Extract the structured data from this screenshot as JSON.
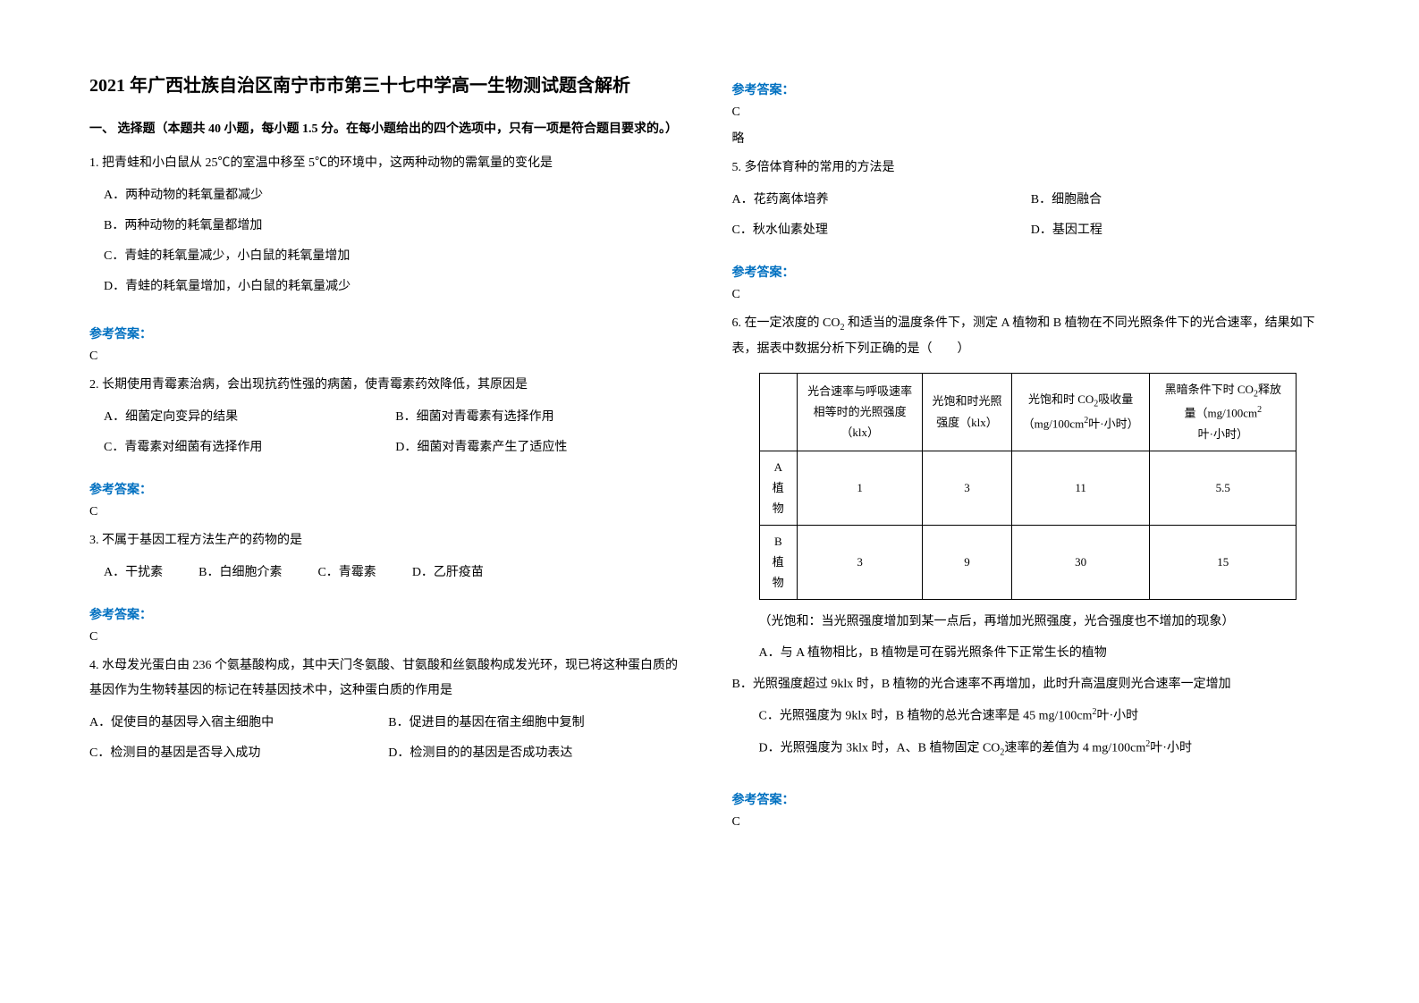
{
  "title": "2021 年广西壮族自治区南宁市市第三十七中学高一生物测试题含解析",
  "section_header": "一、 选择题（本题共 40 小题，每小题 1.5 分。在每小题给出的四个选项中，只有一项是符合题目要求的。）",
  "answer_label": "参考答案：",
  "answer_note": "略",
  "table_note": "（光饱和：当光照强度增加到某一点后，再增加光照强度，光合强度也不增加的现象）",
  "q1": {
    "text": "1. 把青蛙和小白鼠从 25℃的室温中移至 5℃的环境中，这两种动物的需氧量的变化是",
    "a": "A．两种动物的耗氧量都减少",
    "b": "B．两种动物的耗氧量都增加",
    "c": "C．青蛙的耗氧量减少，小白鼠的耗氧量增加",
    "d": "D．青蛙的耗氧量增加，小白鼠的耗氧量减少",
    "answer": "C"
  },
  "q2": {
    "text": "2. 长期使用青霉素治病，会出现抗药性强的病菌，使青霉素药效降低，其原因是",
    "a": "A．细菌定向变异的结果",
    "b": "B．细菌对青霉素有选择作用",
    "c": "C．青霉素对细菌有选择作用",
    "d": "D．细菌对青霉素产生了适应性",
    "answer": "C"
  },
  "q3": {
    "text": "3. 不属于基因工程方法生产的药物的是",
    "a": "A．干扰素",
    "b": "B．白细胞介素",
    "c": "C．青霉素",
    "d": "D．乙肝疫苗",
    "answer": "C"
  },
  "q4": {
    "text": "4. 水母发光蛋白由 236 个氨基酸构成，其中天门冬氨酸、甘氨酸和丝氨酸构成发光环，现已将这种蛋白质的基因作为生物转基因的标记在转基因技术中，这种蛋白质的作用是",
    "a": "A．促使目的基因导入宿主细胞中",
    "b": "B．促进目的基因在宿主细胞中复制",
    "c": "C．检测目的基因是否导入成功",
    "d": "D．检测目的的基因是否成功表达",
    "answer": "C"
  },
  "q5": {
    "text": "5. 多倍体育种的常用的方法是",
    "a": "A．花药离体培养",
    "b": "B．细胞融合",
    "c": "C．秋水仙素处理",
    "d": "D．基因工程",
    "answer": "C"
  },
  "q6": {
    "text_prefix": "6. 在一定浓度的 CO",
    "text_suffix": " 和适当的温度条件下，测定 A 植物和 B 植物在不同光照条件下的光合速率，结果如下表，据表中数据分析下列正确的是（　　）",
    "a": "A．与 A 植物相比，B 植物是可在弱光照条件下正常生长的植物",
    "b": "B．光照强度超过 9klx 时，B 植物的光合速率不再增加，此时升高温度则光合速率一定增加",
    "c_prefix": "C．光照强度为 9klx 时，B 植物的总光合速率是 45 mg/100cm",
    "c_suffix": "叶·小时",
    "d_prefix": "D．光照强度为 3klx 时，A、B 植物固定 CO",
    "d_mid": "速率的差值为 4 mg/100cm",
    "d_suffix": "叶·小时",
    "answer": "C"
  },
  "table": {
    "headers": {
      "h1": "光合速率与呼吸速率相等时的光照强度（klx）",
      "h2": "光饱和时光照强度（klx）",
      "h3_prefix": "光饱和时 CO",
      "h3_mid": "吸收量（mg/100cm",
      "h3_suffix": "叶·小时）",
      "h4_prefix": "黑暗条件下时 CO",
      "h4_mid": "释放量（mg/100cm",
      "h4_suffix": "叶·小时）"
    },
    "rows": [
      {
        "label": "A 植物",
        "v1": "1",
        "v2": "3",
        "v3": "11",
        "v4": "5.5"
      },
      {
        "label": "B 植物",
        "v1": "3",
        "v2": "9",
        "v3": "30",
        "v4": "15"
      }
    ]
  }
}
